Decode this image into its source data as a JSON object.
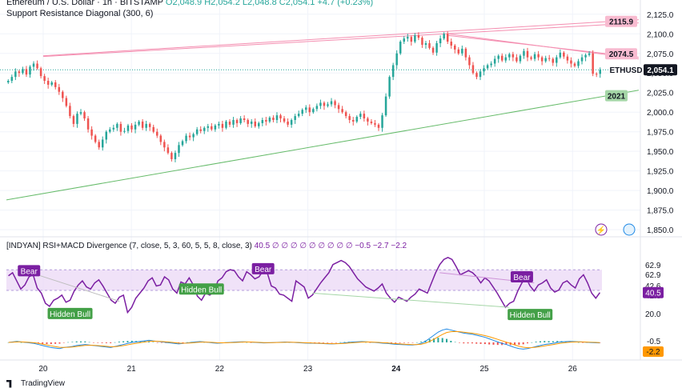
{
  "header": {
    "title": "Ethereum / U.S. Dollar · 1h · BITSTAMP",
    "ohlc": "O2,048.9  H2,054.2  L2,048.8  C2,054.1  +4.7 (+0.23%)",
    "indicator": "Support Resistance Diagonal (300, 6)"
  },
  "footer": {
    "brand": "TradingView"
  },
  "colors": {
    "up": "#26a69a",
    "down": "#ef5350",
    "resistance": "#f48fb1",
    "support": "#66bb6a",
    "rsi_line": "#7b1fa2",
    "rsi_band": "#e9d5f5",
    "macd": "#1e88e5",
    "signal": "#ff9800",
    "price_label": "#131722"
  },
  "rsi_panel": {
    "label": "[INDYAN] RSI+MACD Divergence (7, close, 5, 3, 60, 5, 5, 8, close, 3)",
    "values_text": "40.5  ∅  ∅  ∅  ∅  ∅  ∅  ∅  ∅  ∅  −0.5  −2.7  −2.2",
    "rsi_value": "40.5",
    "macd_value": "-0.5",
    "signal_value": "-2.2",
    "divergence_labels": [
      "Bear",
      "Bear",
      "Bear",
      "Hidden Bull",
      "Hidden Bull",
      "Hidden Bull"
    ]
  },
  "chart_data": {
    "type": "candlestick",
    "symbol": "ETHUSD",
    "last_price": "2,054.1",
    "support_label": "2021",
    "resistance_labels": [
      "2115.9",
      "2074.5"
    ],
    "y_ticks": [
      "2,125.0",
      "2,100.0",
      "2,075.0",
      "2,050.0",
      "2,025.0",
      "2,000.0",
      "1,975.0",
      "1,950.0",
      "1,925.0",
      "1,900.0",
      "1,875.0",
      "1,850.0"
    ],
    "ylim": [
      1845,
      2135
    ],
    "x_ticks": [
      "20",
      "21",
      "22",
      "23",
      "24",
      "25",
      "26"
    ],
    "x_tick_times": [
      10,
      34,
      58,
      82,
      106,
      130,
      154
    ],
    "time_range": [
      0,
      162
    ],
    "rsi_ticks": [
      "62.9",
      "62.9",
      "42.6",
      "42.6",
      "20.0"
    ],
    "rsi_ylim": [
      12,
      78
    ],
    "rsi_band": [
      42.6,
      62.9
    ],
    "close": [
      2040,
      2045,
      2052,
      2050,
      2055,
      2048,
      2058,
      2062,
      2056,
      2046,
      2040,
      2035,
      2038,
      2032,
      2026,
      2018,
      2008,
      1995,
      1985,
      1998,
      2000,
      1992,
      1978,
      1970,
      1962,
      1955,
      1965,
      1975,
      1978,
      1980,
      1985,
      1975,
      1976,
      1983,
      1978,
      1984,
      1988,
      1980,
      1985,
      1981,
      1975,
      1970,
      1962,
      1955,
      1948,
      1940,
      1948,
      1958,
      1963,
      1970,
      1968,
      1972,
      1978,
      1976,
      1980,
      1982,
      1978,
      1983,
      1985,
      1980,
      1988,
      1984,
      1990,
      1986,
      1992,
      1990,
      1985,
      1988,
      1982,
      1986,
      1990,
      1988,
      1993,
      1990,
      1996,
      1992,
      1988,
      1984,
      1990,
      1995,
      1998,
      2003,
      2006,
      2000,
      2004,
      2008,
      2012,
      2008,
      2010,
      2014,
      2009,
      2004,
      2000,
      1995,
      1990,
      1988,
      1994,
      1998,
      1992,
      1988,
      1986,
      1984,
      1980,
      1996,
      2020,
      2045,
      2060,
      2075,
      2090,
      2094,
      2096,
      2090,
      2098,
      2095,
      2086,
      2088,
      2082,
      2076,
      2088,
      2094,
      2100,
      2090,
      2085,
      2080,
      2075,
      2081,
      2070,
      2060,
      2050,
      2045,
      2052,
      2056,
      2060,
      2062,
      2068,
      2072,
      2066,
      2070,
      2074,
      2070,
      2065,
      2072,
      2078,
      2070,
      2068,
      2074,
      2070,
      2065,
      2069,
      2068,
      2063,
      2070,
      2076,
      2071,
      2066,
      2062,
      2059,
      2065,
      2070,
      2073,
      2075,
      2049,
      2048.9,
      2054.1
    ],
    "rsi": [
      57,
      60,
      52,
      44,
      48,
      56,
      58,
      45,
      40,
      30,
      27,
      33,
      35,
      38,
      31,
      33,
      42,
      48,
      52,
      46,
      44,
      50,
      53,
      47,
      40,
      33,
      30,
      36,
      38,
      21,
      26,
      35,
      40,
      45,
      52,
      55,
      47,
      48,
      56,
      53,
      44,
      40,
      51,
      49,
      55,
      48,
      37,
      33,
      40,
      38,
      41,
      52,
      55,
      61,
      63,
      62,
      56,
      52,
      61,
      58,
      54,
      56,
      62,
      60,
      47,
      45,
      39,
      38,
      35,
      32,
      52,
      49,
      46,
      35,
      38,
      44,
      50,
      55,
      60,
      68,
      70,
      72,
      70,
      66,
      60,
      54,
      50,
      46,
      44,
      42,
      45,
      49,
      40,
      35,
      31,
      36,
      34,
      32,
      36,
      39,
      44,
      42,
      40,
      50,
      60,
      68,
      73,
      75,
      73,
      66,
      58,
      60,
      62,
      60,
      56,
      50,
      55,
      52,
      46,
      40,
      33,
      26,
      30,
      32,
      42,
      50,
      55,
      47,
      42,
      48,
      50,
      53,
      45,
      41,
      43,
      50,
      52,
      48,
      45,
      54,
      58,
      50,
      40,
      35,
      40.5
    ],
    "macd": [
      0,
      0.5,
      1,
      0.5,
      0,
      -0.5,
      -1,
      -2,
      -3,
      -4,
      -5,
      -5.5,
      -6,
      -5,
      -4.5,
      -4,
      -3,
      -2.5,
      -2,
      -2.5,
      -3,
      -3.5,
      -4,
      -4.5,
      -5,
      -4,
      -3,
      -2,
      -1,
      0,
      0.5,
      1,
      1.5,
      2,
      1.5,
      1,
      0.5,
      0,
      -0.5,
      -1,
      -1.5,
      -1,
      -0.5,
      0,
      0.5,
      0.8,
      0.5,
      0,
      -0.5,
      -0.8,
      -0.6,
      -0.3,
      0,
      0.3,
      0.5,
      0.6,
      0.5,
      0.3,
      0,
      -0.3,
      -0.5,
      -0.4,
      -0.2,
      0,
      0.2,
      0.4,
      0.2,
      0,
      -0.3,
      -0.5,
      -0.7,
      -0.8,
      -0.9,
      -1,
      -1.2,
      -1.4,
      -1.5,
      -1.3,
      -1,
      -0.5,
      0,
      0.4,
      0.6,
      0.8,
      0.6,
      0.3,
      0,
      -0.4,
      -0.8,
      -1,
      -1.5,
      -1.8,
      -2,
      -2.2,
      -2.4,
      -2.5,
      -2,
      -1,
      1,
      4,
      7,
      10,
      12,
      13,
      12,
      11,
      10,
      9,
      8.5,
      8,
      7,
      6,
      5,
      3.5,
      2,
      0.5,
      -1,
      -2,
      -3.5,
      -5,
      -6,
      -6.5,
      -6,
      -5,
      -4,
      -3,
      -2,
      -1.5,
      -1,
      0,
      0.5,
      0.8,
      1,
      0.8,
      0.6,
      0.4,
      0.1,
      -0.2,
      -0.4,
      -0.5
    ]
  }
}
